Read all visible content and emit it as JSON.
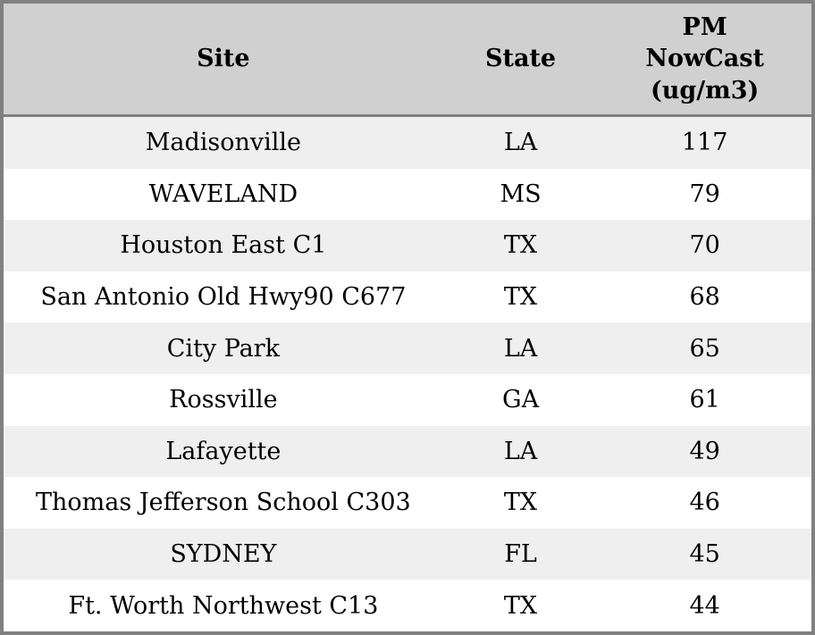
{
  "chart_data": {
    "type": "table",
    "columns": [
      "Site",
      "State",
      "PM NowCast (ug/m3)"
    ],
    "rows": [
      [
        "Madisonville",
        "LA",
        117
      ],
      [
        "WAVELAND",
        "MS",
        79
      ],
      [
        "Houston East C1",
        "TX",
        70
      ],
      [
        "San Antonio Old Hwy90 C677",
        "TX",
        68
      ],
      [
        "City Park",
        "LA",
        65
      ],
      [
        "Rossville",
        "GA",
        61
      ],
      [
        "Lafayette",
        "LA",
        49
      ],
      [
        "Thomas Jefferson School C303",
        "TX",
        46
      ],
      [
        "SYDNEY",
        "FL",
        45
      ],
      [
        "Ft. Worth Northwest C13",
        "TX",
        44
      ]
    ]
  },
  "colors": {
    "header_bg": "#d0d0d0",
    "stripe_row_bg": "#efefef",
    "row_bg": "#ffffff",
    "border": "#808080",
    "text": "#000000"
  }
}
